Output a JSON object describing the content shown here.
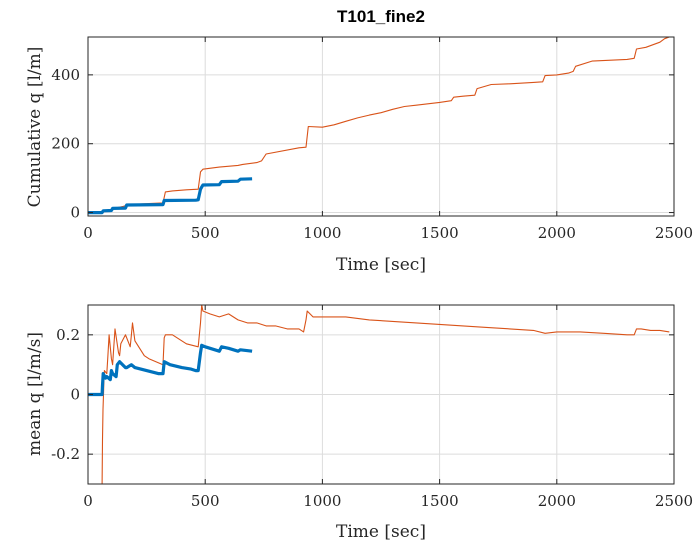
{
  "chart_data": [
    {
      "type": "line",
      "title": "T101_fine2",
      "xlabel": "Time [sec]",
      "ylabel": "Cumulative q [l/m]",
      "xlim": [
        0,
        2500
      ],
      "ylim": [
        -10,
        510
      ],
      "xticks": [
        "0",
        "500",
        "1000",
        "1500",
        "2000",
        "2500"
      ],
      "yticks": [
        "0",
        "200",
        "400"
      ],
      "xtick_values": [
        0,
        500,
        1000,
        1500,
        2000,
        2500
      ],
      "ytick_values": [
        0,
        200,
        400
      ],
      "grid": true,
      "series": [
        {
          "color": "#D95319",
          "line_width": "thin",
          "x": [
            0,
            60,
            70,
            100,
            110,
            130,
            150,
            170,
            200,
            260,
            320,
            330,
            360,
            420,
            470,
            480,
            490,
            560,
            640,
            660,
            720,
            740,
            760,
            900,
            930,
            940,
            1000,
            1050,
            1100,
            1150,
            1200,
            1250,
            1300,
            1350,
            1400,
            1450,
            1500,
            1550,
            1560,
            1600,
            1650,
            1660,
            1720,
            1800,
            1900,
            1940,
            1950,
            2000,
            2050,
            2070,
            2080,
            2150,
            2300,
            2330,
            2340,
            2380,
            2440,
            2460,
            2480
          ],
          "y": [
            0,
            0,
            3,
            8,
            12,
            15,
            18,
            22,
            24,
            26,
            28,
            60,
            63,
            66,
            68,
            118,
            126,
            132,
            137,
            140,
            145,
            150,
            170,
            188,
            190,
            250,
            248,
            255,
            265,
            275,
            283,
            290,
            300,
            308,
            312,
            316,
            320,
            325,
            335,
            338,
            341,
            360,
            372,
            374,
            378,
            380,
            398,
            400,
            405,
            410,
            425,
            440,
            445,
            448,
            475,
            480,
            495,
            505,
            510
          ]
        },
        {
          "color": "#0072BD",
          "line_width": "thick",
          "x": [
            0,
            60,
            65,
            100,
            105,
            160,
            165,
            320,
            325,
            460,
            470,
            480,
            490,
            560,
            570,
            640,
            650,
            700
          ],
          "y": [
            0,
            0,
            5,
            6,
            12,
            13,
            22,
            23,
            35,
            36,
            37,
            68,
            80,
            81,
            90,
            91,
            97,
            98
          ]
        }
      ]
    },
    {
      "type": "line",
      "xlabel": "Time [sec]",
      "ylabel": "mean q [l/m/s]",
      "xlim": [
        0,
        2500
      ],
      "ylim": [
        -0.3,
        0.3
      ],
      "xticks": [
        "0",
        "500",
        "1000",
        "1500",
        "2000",
        "2500"
      ],
      "yticks": [
        "-0.2",
        "0",
        "0.2"
      ],
      "xtick_values": [
        0,
        500,
        1000,
        1500,
        2000,
        2500
      ],
      "ytick_values": [
        -0.2,
        0,
        0.2
      ],
      "grid": true,
      "series": [
        {
          "color": "#D95319",
          "line_width": "thin",
          "x": [
            60,
            62,
            64,
            66,
            68,
            70,
            80,
            85,
            90,
            100,
            105,
            110,
            115,
            130,
            135,
            140,
            160,
            180,
            185,
            190,
            200,
            240,
            260,
            320,
            325,
            330,
            360,
            420,
            470,
            480,
            485,
            490,
            520,
            560,
            600,
            640,
            680,
            720,
            760,
            800,
            850,
            900,
            920,
            930,
            935,
            960,
            1000,
            1100,
            1200,
            1300,
            1400,
            1500,
            1600,
            1700,
            1800,
            1900,
            1950,
            2000,
            2100,
            2200,
            2300,
            2330,
            2340,
            2360,
            2400,
            2440,
            2480
          ],
          "y": [
            -0.3,
            -0.15,
            -0.05,
            0.0,
            0.05,
            0.08,
            0.07,
            0.13,
            0.2,
            0.12,
            0.1,
            0.16,
            0.22,
            0.14,
            0.13,
            0.17,
            0.2,
            0.16,
            0.2,
            0.24,
            0.18,
            0.13,
            0.12,
            0.1,
            0.19,
            0.2,
            0.2,
            0.17,
            0.16,
            0.24,
            0.3,
            0.28,
            0.27,
            0.26,
            0.27,
            0.25,
            0.24,
            0.24,
            0.23,
            0.23,
            0.22,
            0.22,
            0.21,
            0.25,
            0.28,
            0.26,
            0.26,
            0.26,
            0.25,
            0.245,
            0.24,
            0.235,
            0.23,
            0.225,
            0.22,
            0.215,
            0.205,
            0.21,
            0.21,
            0.205,
            0.2,
            0.2,
            0.22,
            0.22,
            0.215,
            0.215,
            0.21
          ]
        },
        {
          "color": "#0072BD",
          "line_width": "thick",
          "x": [
            0,
            60,
            62,
            65,
            75,
            80,
            95,
            100,
            105,
            120,
            125,
            135,
            160,
            165,
            185,
            200,
            250,
            300,
            320,
            325,
            350,
            400,
            440,
            460,
            470,
            480,
            485,
            500,
            560,
            570,
            600,
            640,
            650,
            700
          ],
          "y": [
            0,
            0,
            0.03,
            0.07,
            0.055,
            0.06,
            0.05,
            0.08,
            0.07,
            0.06,
            0.1,
            0.11,
            0.09,
            0.09,
            0.1,
            0.09,
            0.08,
            0.07,
            0.07,
            0.11,
            0.1,
            0.09,
            0.085,
            0.08,
            0.08,
            0.14,
            0.165,
            0.16,
            0.145,
            0.16,
            0.155,
            0.145,
            0.15,
            0.145
          ]
        }
      ]
    }
  ]
}
